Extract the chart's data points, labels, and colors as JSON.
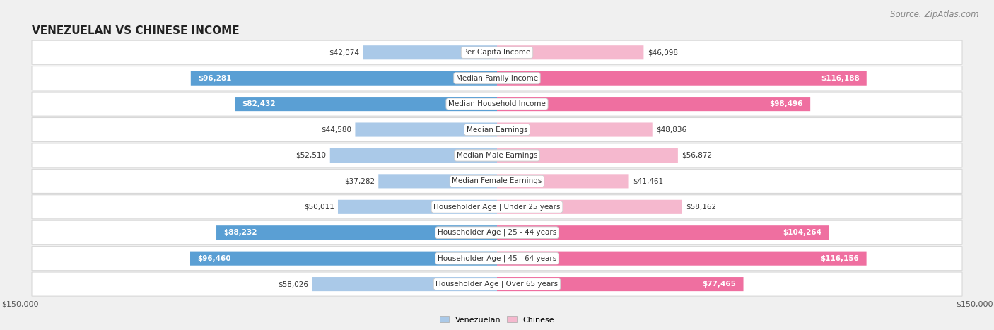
{
  "title": "VENEZUELAN VS CHINESE INCOME",
  "source": "Source: ZipAtlas.com",
  "categories": [
    "Per Capita Income",
    "Median Family Income",
    "Median Household Income",
    "Median Earnings",
    "Median Male Earnings",
    "Median Female Earnings",
    "Householder Age | Under 25 years",
    "Householder Age | 25 - 44 years",
    "Householder Age | 45 - 64 years",
    "Householder Age | Over 65 years"
  ],
  "venezuelan": [
    42074,
    96281,
    82432,
    44580,
    52510,
    37282,
    50011,
    88232,
    96460,
    58026
  ],
  "chinese": [
    46098,
    116188,
    98496,
    48836,
    56872,
    41461,
    58162,
    104264,
    116156,
    77465
  ],
  "max_val": 150000,
  "ven_color_light": "#aac9e8",
  "ven_color_dark": "#5a9fd4",
  "chi_color_light": "#f5b8ce",
  "chi_color_dark": "#ef6fa0",
  "ven_inside_threshold": 60000,
  "chi_inside_threshold": 75000,
  "bg_color": "#f0f0f0",
  "row_color": "#ffffff",
  "row_edge_color": "#d8d8d8",
  "title_fontsize": 11,
  "source_fontsize": 8.5,
  "label_fontsize": 7.5,
  "cat_fontsize": 7.5,
  "axis_fontsize": 8
}
